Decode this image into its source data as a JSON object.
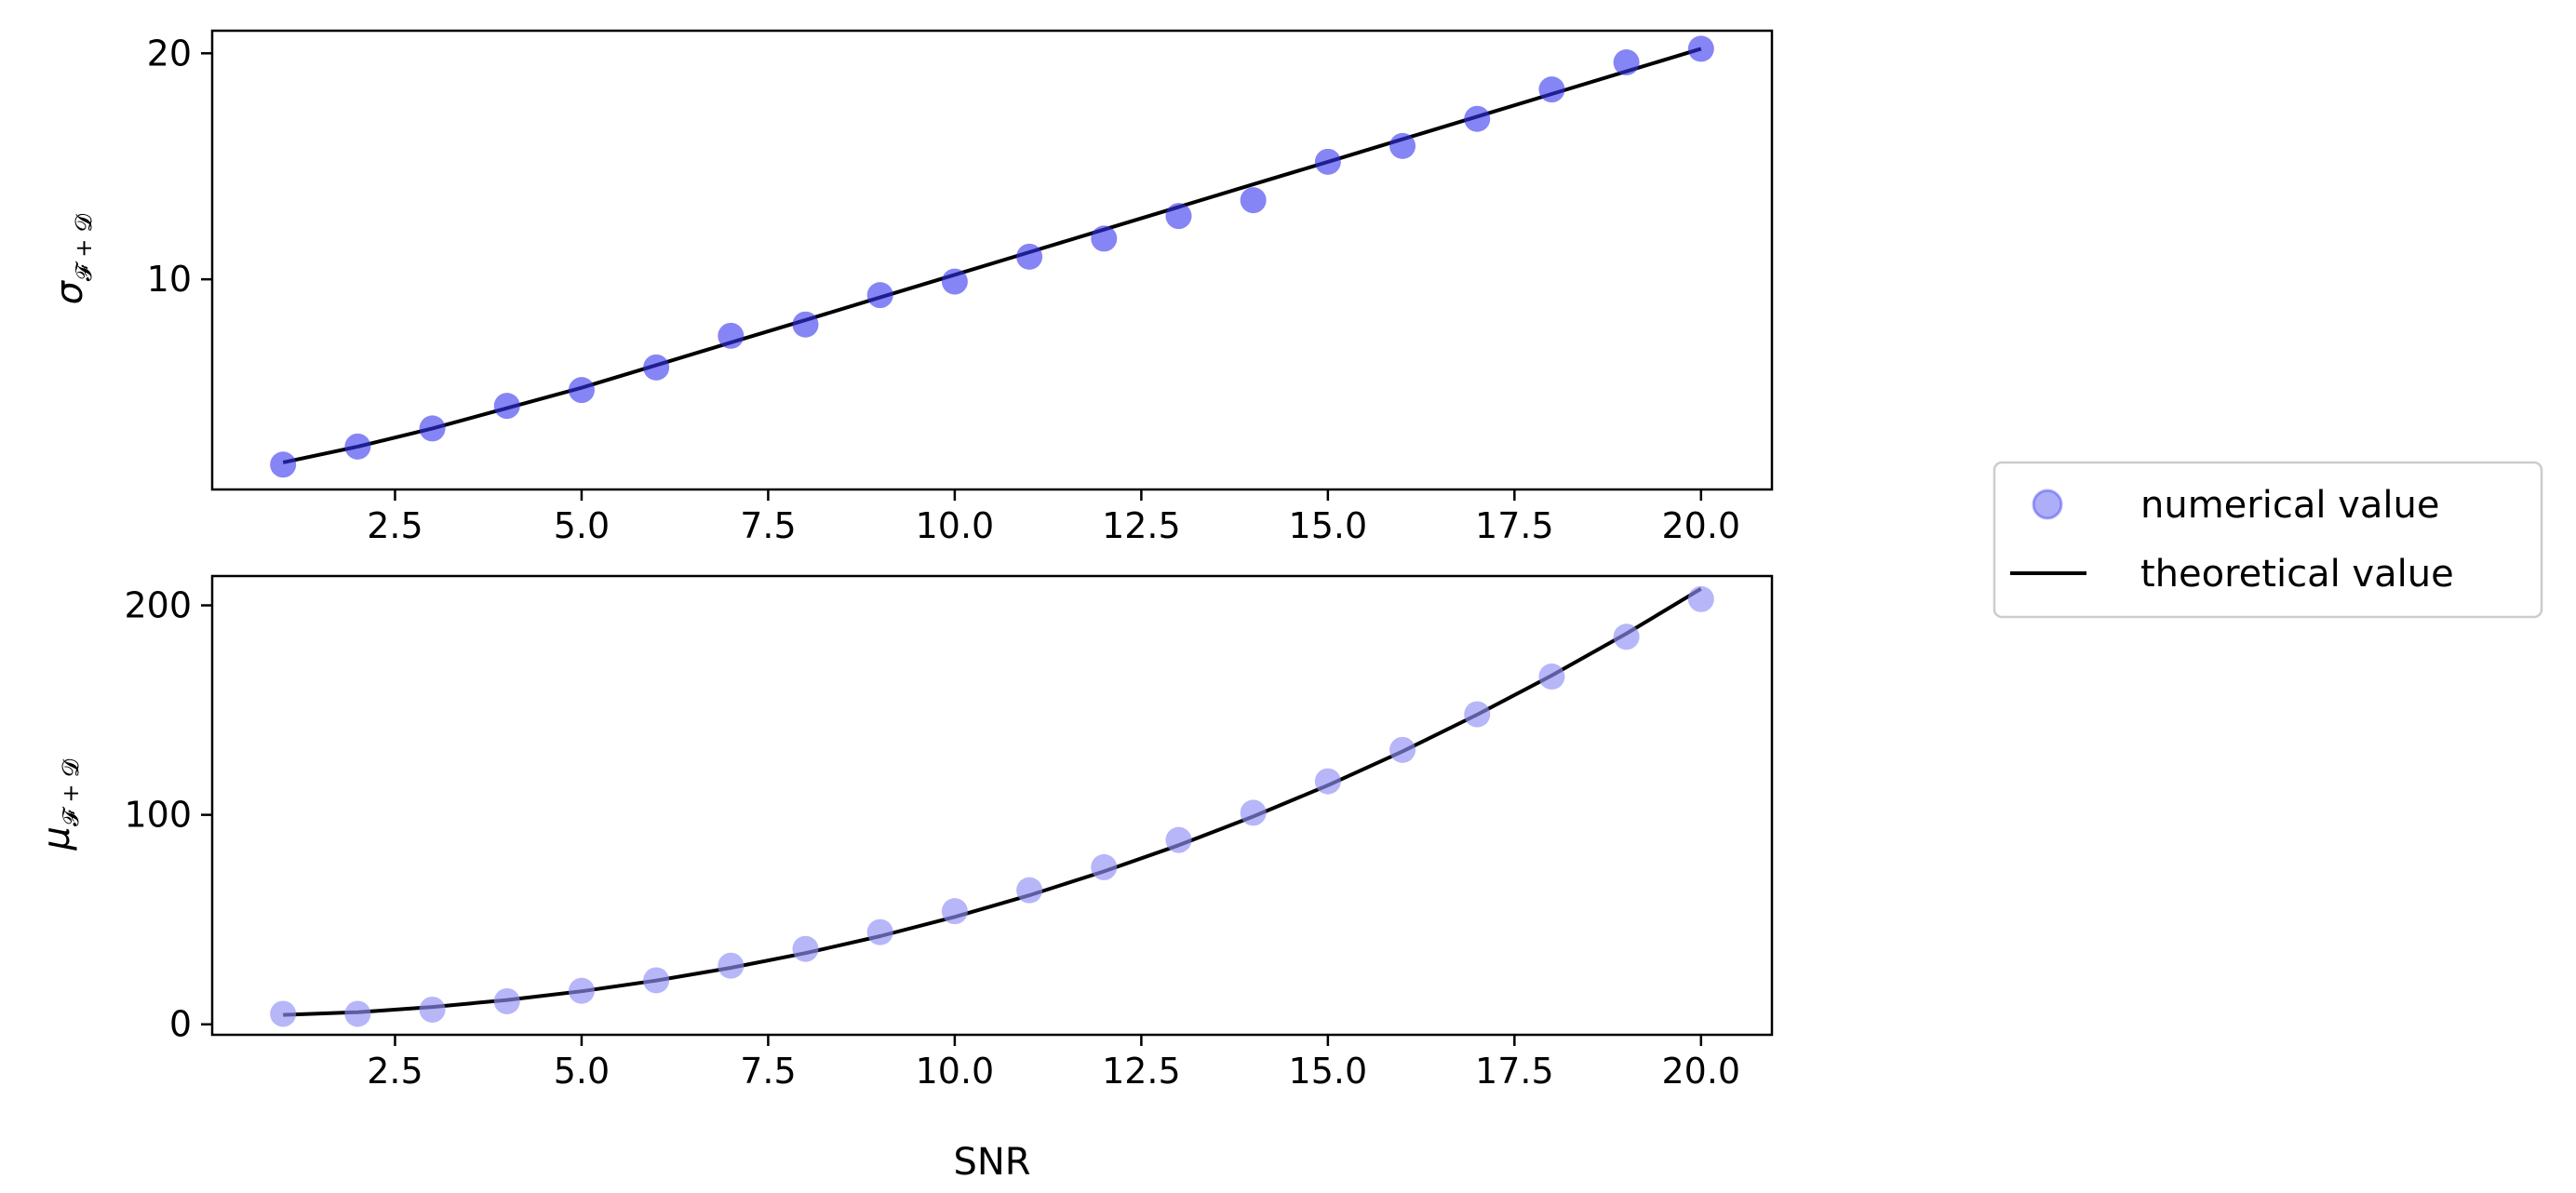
{
  "chart_data": [
    {
      "type": "scatter",
      "xlabel": "",
      "ylabel_main": "σ",
      "ylabel_sub": "𝓕 + 𝓓",
      "xlim": [
        0.05,
        20.95
      ],
      "ylim": [
        0.7,
        21.0
      ],
      "xticks": [
        2.5,
        5.0,
        7.5,
        10.0,
        12.5,
        15.0,
        17.5,
        20.0
      ],
      "xtick_labels": [
        "2.5",
        "5.0",
        "7.5",
        "10.0",
        "12.5",
        "15.0",
        "17.5",
        "20.0"
      ],
      "yticks": [
        10,
        20
      ],
      "ytick_labels": [
        "10",
        "20"
      ],
      "series": [
        {
          "kind": "points",
          "x": [
            1,
            2,
            3,
            4,
            5,
            6,
            7,
            8,
            9,
            10,
            11,
            12,
            13,
            14,
            15,
            16,
            17,
            18,
            19,
            20
          ],
          "y": [
            1.8,
            2.6,
            3.4,
            4.4,
            5.1,
            6.1,
            7.5,
            8.0,
            9.3,
            9.9,
            11.0,
            11.8,
            12.8,
            13.5,
            15.2,
            15.9,
            17.1,
            18.4,
            19.6,
            20.2
          ]
        },
        {
          "kind": "line",
          "x": [
            1,
            2,
            3,
            4,
            5,
            6,
            7,
            8,
            9,
            10,
            11,
            12,
            13,
            14,
            15,
            16,
            17,
            18,
            19,
            20
          ],
          "y": [
            1.9,
            2.6,
            3.4,
            4.3,
            5.2,
            6.2,
            7.2,
            8.2,
            9.2,
            10.2,
            11.2,
            12.2,
            13.2,
            14.2,
            15.2,
            16.2,
            17.2,
            18.2,
            19.2,
            20.2
          ]
        }
      ]
    },
    {
      "type": "scatter",
      "xlabel": "SNR",
      "ylabel_main": "μ",
      "ylabel_sub": "𝓕 + 𝓓",
      "xlim": [
        0.05,
        20.95
      ],
      "ylim": [
        -5,
        214
      ],
      "xticks": [
        2.5,
        5.0,
        7.5,
        10.0,
        12.5,
        15.0,
        17.5,
        20.0
      ],
      "xtick_labels": [
        "2.5",
        "5.0",
        "7.5",
        "10.0",
        "12.5",
        "15.0",
        "17.5",
        "20.0"
      ],
      "yticks": [
        0,
        100,
        200
      ],
      "ytick_labels": [
        "0",
        "100",
        "200"
      ],
      "series": [
        {
          "kind": "points",
          "x": [
            1,
            2,
            3,
            4,
            5,
            6,
            7,
            8,
            9,
            10,
            11,
            12,
            13,
            14,
            15,
            16,
            17,
            18,
            19,
            20
          ],
          "y": [
            5,
            5,
            7,
            11,
            16,
            21,
            28,
            36,
            44,
            54,
            64,
            75,
            88,
            101,
            116,
            131,
            148,
            166,
            185,
            203
          ]
        },
        {
          "kind": "line",
          "x": [
            1,
            2,
            3,
            4,
            5,
            6,
            7,
            8,
            9,
            10,
            11,
            12,
            13,
            14,
            15,
            16,
            17,
            18,
            19,
            20
          ],
          "y": [
            4.5,
            5.8,
            8.3,
            11.6,
            15.8,
            20.9,
            27.0,
            34.0,
            42.1,
            51.3,
            61.6,
            73.0,
            85.5,
            99.2,
            114.1,
            130.3,
            147.8,
            166.5,
            186.5,
            207.9
          ]
        }
      ]
    }
  ],
  "legend": {
    "position": "right",
    "entries": [
      {
        "label": "numerical value",
        "marker": "circle"
      },
      {
        "label": "theoretical value",
        "marker": "line"
      }
    ]
  },
  "colors": {
    "points_top": "#3333ee",
    "points_bottom": "#8f8ff5",
    "line": "#000000"
  }
}
